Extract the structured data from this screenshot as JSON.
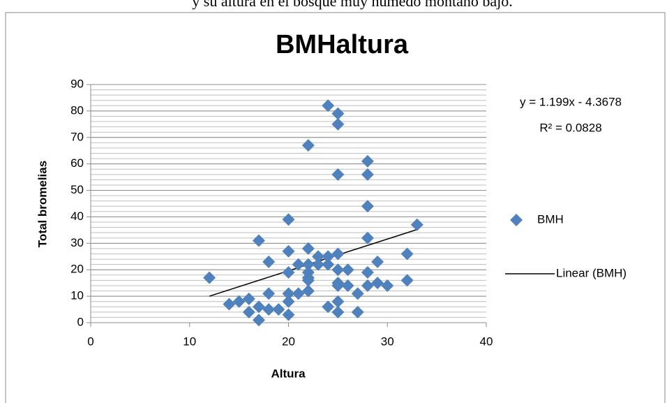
{
  "caption": "y su altura en el bosque muy húmedo montano bajo.",
  "chart_data": {
    "type": "scatter",
    "title": "BMHaltura",
    "xlabel": "Altura",
    "ylabel": "Total bromelias",
    "series": [
      {
        "name": "BMH",
        "color": "#4f81bd",
        "x": [
          12,
          14,
          15,
          16,
          16,
          17,
          17,
          17,
          18,
          18,
          18,
          19,
          20,
          20,
          20,
          20,
          20,
          20,
          21,
          21,
          22,
          22,
          22,
          22,
          22,
          22,
          22,
          23,
          23,
          24,
          24,
          24,
          24,
          25,
          25,
          25,
          25,
          25,
          25,
          25,
          25,
          25,
          26,
          26,
          27,
          27,
          28,
          28,
          28,
          28,
          28,
          28,
          29,
          29,
          30,
          32,
          32,
          33
        ],
        "values": [
          17,
          7,
          8,
          9,
          4,
          31,
          6,
          1,
          23,
          11,
          5,
          5,
          39,
          27,
          19,
          11,
          8,
          3,
          22,
          11,
          67,
          28,
          22,
          19,
          17,
          16,
          12,
          25,
          22,
          82,
          25,
          22,
          6,
          79,
          75,
          56,
          26,
          20,
          15,
          14,
          8,
          4,
          20,
          14,
          11,
          4,
          61,
          56,
          44,
          32,
          19,
          14,
          23,
          15,
          14,
          26,
          16,
          37
        ]
      }
    ],
    "trendline": {
      "name": "Linear (BMH)",
      "color": "#000000",
      "slope": 1.199,
      "intercept": -4.3678,
      "equation": "y = 1.199x - 4.3678",
      "r2": "R² = 0.0828"
    },
    "xlim": [
      0,
      40
    ],
    "xticks": [
      0,
      10,
      20,
      30,
      40
    ],
    "ylim": [
      0,
      90
    ],
    "yticks": [
      0,
      10,
      20,
      30,
      40,
      50,
      60,
      70,
      80,
      90
    ],
    "grid": true,
    "minor_grid_step": 2,
    "legend": "right"
  }
}
